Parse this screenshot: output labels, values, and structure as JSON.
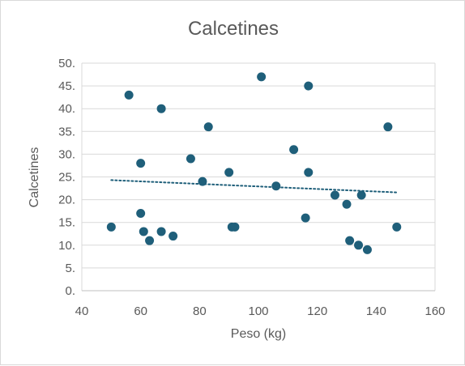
{
  "chart_data": {
    "type": "scatter",
    "title": "Calcetines",
    "xlabel": "Peso (kg)",
    "ylabel": "Calcetines",
    "xlim": [
      40,
      160
    ],
    "ylim": [
      0,
      50
    ],
    "x_ticks": [
      "40",
      "60",
      "80",
      "100",
      "120",
      "140",
      "160"
    ],
    "y_ticks": [
      "0.",
      "5.",
      "10.",
      "15.",
      "20.",
      "25.",
      "30.",
      "35.",
      "40.",
      "45.",
      "50."
    ],
    "grid": "horizontal",
    "legend": "none",
    "marker_color": "#1f5f7a",
    "trendline": {
      "type": "linear",
      "style": "dotted",
      "color": "#1f5f7a",
      "x": [
        50,
        147
      ],
      "y": [
        24.3,
        21.6
      ]
    },
    "points": [
      {
        "x": 50,
        "y": 14
      },
      {
        "x": 56,
        "y": 43
      },
      {
        "x": 60,
        "y": 28
      },
      {
        "x": 60,
        "y": 17
      },
      {
        "x": 61,
        "y": 13
      },
      {
        "x": 63,
        "y": 11
      },
      {
        "x": 67,
        "y": 40
      },
      {
        "x": 67,
        "y": 13
      },
      {
        "x": 71,
        "y": 12
      },
      {
        "x": 77,
        "y": 29
      },
      {
        "x": 81,
        "y": 24
      },
      {
        "x": 83,
        "y": 36
      },
      {
        "x": 90,
        "y": 26
      },
      {
        "x": 91,
        "y": 14
      },
      {
        "x": 92,
        "y": 14
      },
      {
        "x": 101,
        "y": 47
      },
      {
        "x": 106,
        "y": 23
      },
      {
        "x": 112,
        "y": 31
      },
      {
        "x": 116,
        "y": 16
      },
      {
        "x": 117,
        "y": 45
      },
      {
        "x": 117,
        "y": 26
      },
      {
        "x": 126,
        "y": 21
      },
      {
        "x": 130,
        "y": 19
      },
      {
        "x": 131,
        "y": 11
      },
      {
        "x": 134,
        "y": 10
      },
      {
        "x": 135,
        "y": 21
      },
      {
        "x": 137,
        "y": 9
      },
      {
        "x": 144,
        "y": 36
      },
      {
        "x": 147,
        "y": 14
      }
    ]
  }
}
